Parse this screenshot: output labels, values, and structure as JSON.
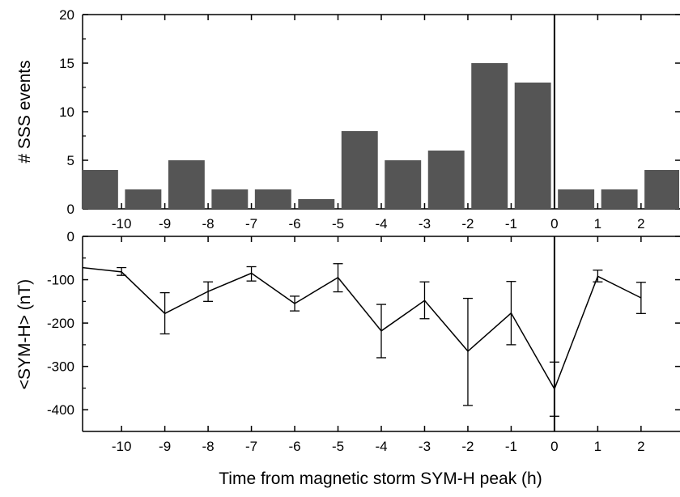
{
  "colors": {
    "bar": "#555555",
    "axis": "#000000",
    "line": "#000000"
  },
  "chart_data": [
    {
      "type": "bar",
      "ylabel": "# SSS events",
      "xlim": [
        -10.9,
        2.9
      ],
      "ylim": [
        0,
        20
      ],
      "yticks": [
        0,
        5,
        10,
        15,
        20
      ],
      "xticks": [
        -10,
        -9,
        -8,
        -7,
        -6,
        -5,
        -4,
        -3,
        -2,
        -1,
        0,
        1,
        2
      ],
      "bin_width": 1,
      "bars": [
        {
          "x": -10.5,
          "value": 4
        },
        {
          "x": -9.5,
          "value": 2
        },
        {
          "x": -8.5,
          "value": 5
        },
        {
          "x": -7.5,
          "value": 2
        },
        {
          "x": -6.5,
          "value": 2
        },
        {
          "x": -5.5,
          "value": 1
        },
        {
          "x": -4.5,
          "value": 8
        },
        {
          "x": -3.5,
          "value": 5
        },
        {
          "x": -2.5,
          "value": 6
        },
        {
          "x": -1.5,
          "value": 15
        },
        {
          "x": -0.5,
          "value": 13
        },
        {
          "x": 0.5,
          "value": 2
        },
        {
          "x": 1.5,
          "value": 2
        },
        {
          "x": 2.5,
          "value": 4
        }
      ],
      "vline_x": 0
    },
    {
      "type": "line",
      "ylabel": "<SYM-H> (nT)",
      "xlabel": "Time from magnetic storm SYM-H peak (h)",
      "xlim": [
        -10.9,
        2.9
      ],
      "ylim": [
        -450,
        0
      ],
      "yticks": [
        0,
        -100,
        -200,
        -300,
        -400
      ],
      "xticks": [
        -10,
        -9,
        -8,
        -7,
        -6,
        -5,
        -4,
        -3,
        -2,
        -1,
        0,
        1,
        2
      ],
      "points": [
        {
          "x": -10.9,
          "y": -72
        },
        {
          "x": -10,
          "y": -82,
          "err_lo": -90,
          "err_hi": -72
        },
        {
          "x": -9,
          "y": -178,
          "err_lo": -225,
          "err_hi": -130
        },
        {
          "x": -8,
          "y": -127,
          "err_lo": -150,
          "err_hi": -105
        },
        {
          "x": -7,
          "y": -85,
          "err_lo": -103,
          "err_hi": -70
        },
        {
          "x": -6,
          "y": -155,
          "err_lo": -172,
          "err_hi": -138
        },
        {
          "x": -5,
          "y": -95,
          "err_lo": -128,
          "err_hi": -63
        },
        {
          "x": -4,
          "y": -218,
          "err_lo": -280,
          "err_hi": -157
        },
        {
          "x": -3,
          "y": -148,
          "err_lo": -190,
          "err_hi": -105
        },
        {
          "x": -2,
          "y": -265,
          "err_lo": -390,
          "err_hi": -143
        },
        {
          "x": -1,
          "y": -177,
          "err_lo": -250,
          "err_hi": -104
        },
        {
          "x": 0,
          "y": -352,
          "err_lo": -415,
          "err_hi": -290
        },
        {
          "x": 1,
          "y": -92,
          "err_lo": -105,
          "err_hi": -78
        },
        {
          "x": 2,
          "y": -142,
          "err_lo": -178,
          "err_hi": -106
        }
      ],
      "vline_x": 0
    }
  ]
}
